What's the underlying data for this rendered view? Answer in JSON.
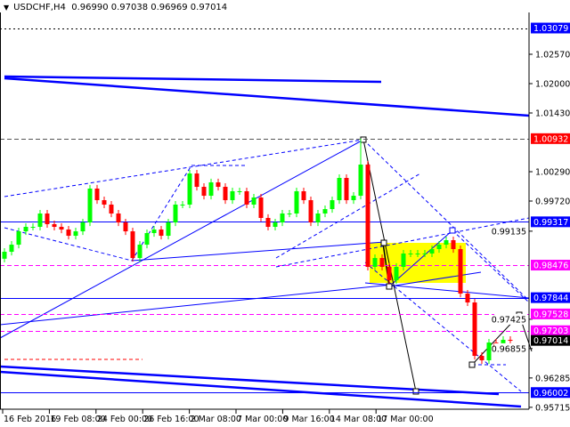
{
  "header": {
    "symbol": "USDCHF,H4",
    "ohlc": "0.96990 0.97038 0.96969 0.97014",
    "menu_icon": "triangle-down-icon"
  },
  "chart_data": {
    "type": "candlestick",
    "symbol": "USDCHF",
    "timeframe": "H4",
    "first_open": 0.986,
    "closes": [
      0.98735,
      0.98873,
      0.99132,
      0.99219,
      0.99219,
      0.99478,
      0.99271,
      0.99219,
      0.99167,
      0.99046,
      0.99132,
      0.99305,
      0.99962,
      0.99737,
      0.99651,
      0.99478,
      0.99305,
      0.99132,
      0.98614,
      0.98873,
      0.99098,
      0.99167,
      0.99046,
      0.99305,
      0.99651,
      0.99651,
      1.00255,
      0.99996,
      0.99823,
      1.00083,
      0.99996,
      0.99737,
      0.9991,
      0.9991,
      0.99651,
      0.99789,
      0.99392,
      0.99219,
      0.99305,
      0.99478,
      0.99478,
      0.9991,
      0.99737,
      0.99305,
      0.99478,
      0.99564,
      0.99737,
      1.00169,
      0.99737,
      0.99823,
      1.00428,
      0.98442,
      0.98614,
      0.98442,
      0.98182,
      0.98442,
      0.98701,
      0.98701,
      0.98701,
      0.98701,
      0.98787,
      0.98873,
      0.9896,
      0.98787,
      0.97923,
      0.97751,
      0.96714,
      0.96628,
      0.96973,
      0.96887,
      0.97025,
      0.97014
    ],
    "ylim": [
      0.956,
      1.0335
    ],
    "y_ticks": [
      "1.02570",
      "1.02000",
      "1.01430",
      "1.00290",
      "0.99720",
      "0.99135",
      "0.97425",
      "0.96855",
      "0.96285",
      "0.95715"
    ],
    "x_ticks": [
      "16 Feb 2016",
      "19 Feb 08:00",
      "24 Feb 00:00",
      "26 Feb 16:00",
      "2 Mar 08:00",
      "7 Mar 00:00",
      "9 Mar 16:00",
      "14 Mar 08:00",
      "17 Mar 00:00"
    ],
    "levels": [
      {
        "price": "1.03079",
        "label_color": "#0000ff",
        "line_color": "#000000",
        "style": "dotted"
      },
      {
        "price": "1.00932",
        "label_color": "#ff0000",
        "line_color": "#555555",
        "style": "dashed"
      },
      {
        "price": "0.99317",
        "label_color": "#0000ff",
        "line_color": "#0000ff",
        "style": "solid"
      },
      {
        "price": "0.98476",
        "label_color": "#ff00ff",
        "line_color": "#ff00ff",
        "style": "dashed"
      },
      {
        "price": "0.97844",
        "label_color": "#0000ff",
        "line_color": "#0000ff",
        "style": "solid"
      },
      {
        "price": "0.97528",
        "label_color": "#ff00ff",
        "line_color": "#ff00ff",
        "style": "dashed"
      },
      {
        "price": "0.97203",
        "label_color": "#ff00ff",
        "line_color": "#ff00ff",
        "style": "dashed"
      },
      {
        "price": "0.96002",
        "label_color": "#0000ff",
        "line_color": "#0000ff",
        "style": "solid"
      }
    ],
    "current_price": "0.97014",
    "colors": {
      "bull": "#00ff00",
      "bear": "#ff0000",
      "zone": "#ffff00",
      "current_label": "#000000"
    }
  }
}
